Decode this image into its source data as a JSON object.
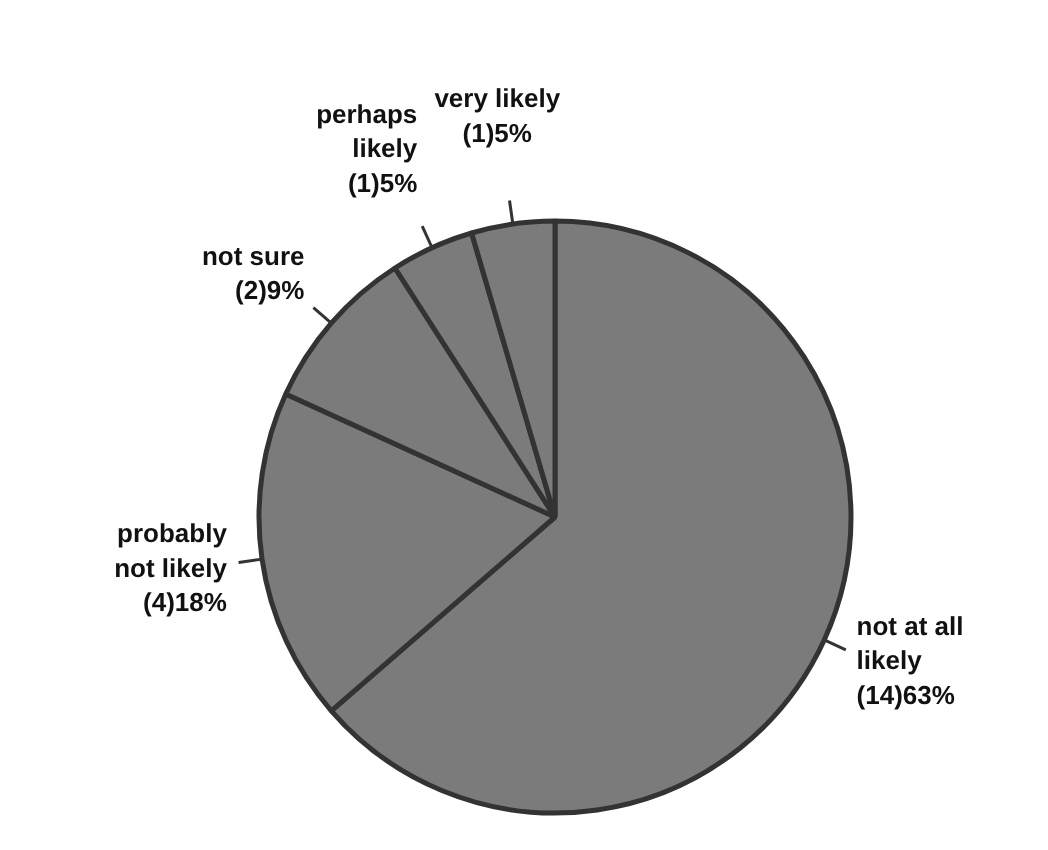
{
  "chart_data": {
    "type": "pie",
    "categories": [
      "not at all likely",
      "probably not likely",
      "not sure",
      "perhaps likely",
      "very likely"
    ],
    "values": [
      14,
      4,
      2,
      1,
      1
    ],
    "value_labels": [
      "(14)63%",
      "(4)18%",
      "(2)9%",
      "(1)5%",
      "(1)5%"
    ],
    "colors": [
      "#7b7b7b",
      "#7b7b7b",
      "#7b7b7b",
      "#7b7b7b",
      "#7b7b7b"
    ],
    "legend": false
  }
}
